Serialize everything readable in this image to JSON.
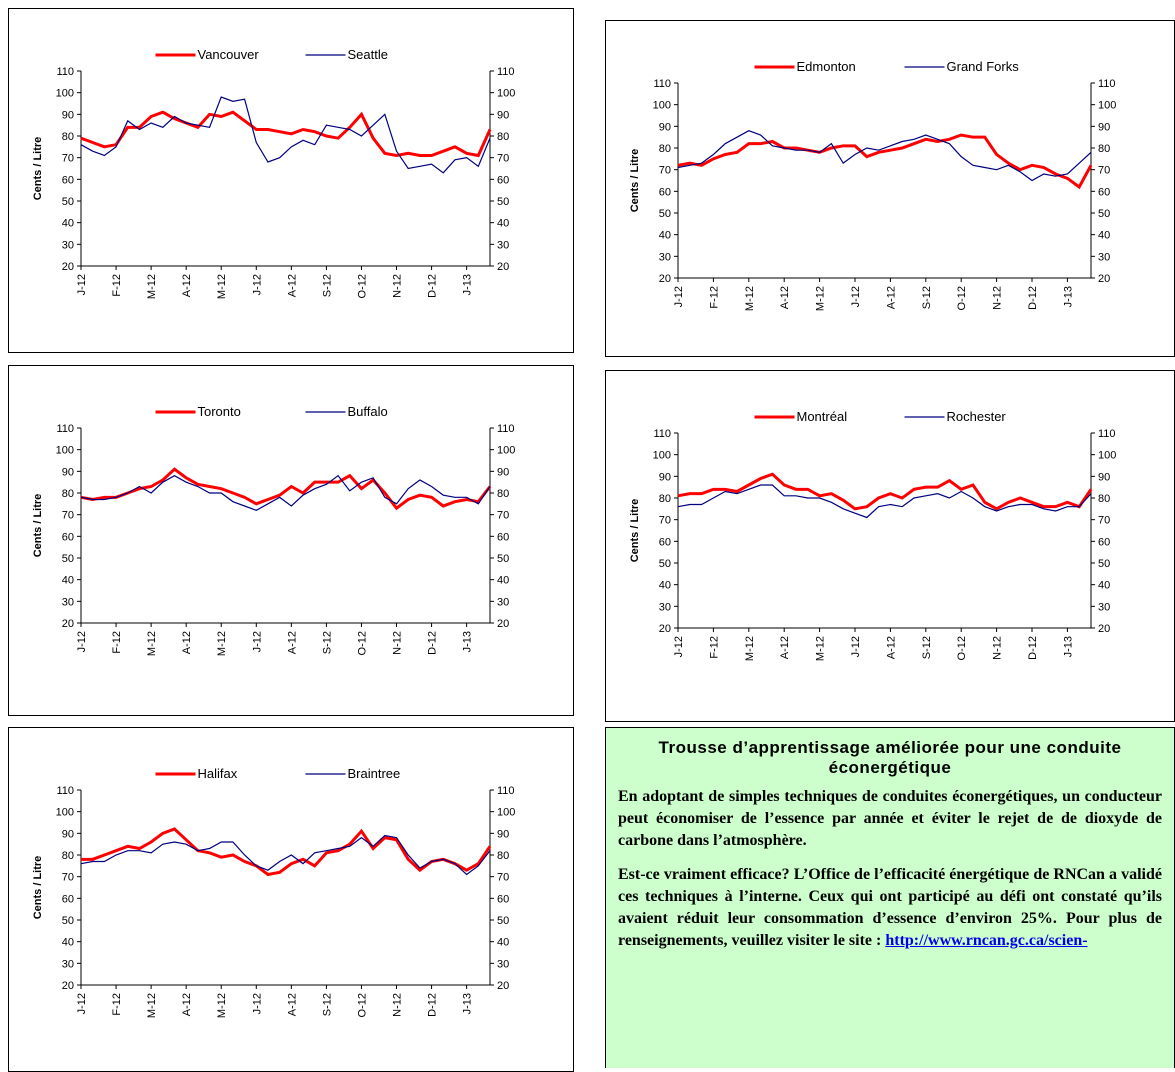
{
  "chart_data": [
    {
      "type": "line",
      "y_label": "Cents / Litre",
      "legend": "top",
      "ylim": [
        20,
        110
      ],
      "yticks": [
        20,
        30,
        40,
        50,
        60,
        70,
        80,
        90,
        100,
        110
      ],
      "y2lim": [
        20,
        110
      ],
      "y2ticks": [
        20,
        30,
        40,
        50,
        60,
        70,
        80,
        90,
        100,
        110
      ],
      "categories": [
        "J-12",
        null,
        null,
        "F-12",
        null,
        null,
        "M-12",
        null,
        null,
        "A-12",
        null,
        null,
        "M-12",
        null,
        null,
        "J-12",
        null,
        null,
        "A-12",
        null,
        null,
        "S-12",
        null,
        null,
        "O-12",
        null,
        null,
        "N-12",
        null,
        null,
        "D-12",
        null,
        null,
        "J-13",
        null,
        null
      ],
      "series": [
        {
          "name": "Vancouver",
          "color": "#ff0000",
          "values": [
            79,
            77,
            75,
            76,
            84,
            84,
            89,
            91,
            88,
            86,
            84,
            90,
            89,
            91,
            87,
            83,
            83,
            82,
            81,
            83,
            82,
            80,
            79,
            84,
            90,
            79,
            72,
            71,
            72,
            71,
            71,
            73,
            75,
            72,
            71,
            83
          ]
        },
        {
          "name": "Seattle",
          "color": "#000080",
          "values": [
            76,
            73,
            71,
            75,
            87,
            83,
            86,
            84,
            89,
            86,
            85,
            84,
            98,
            96,
            97,
            77,
            68,
            70,
            75,
            78,
            76,
            85,
            84,
            83,
            80,
            85,
            90,
            73,
            65,
            66,
            67,
            63,
            69,
            70,
            66,
            79
          ]
        }
      ]
    },
    {
      "type": "line",
      "y_label": "Cents / Litre",
      "legend": "top",
      "ylim": [
        20,
        110
      ],
      "yticks": [
        20,
        30,
        40,
        50,
        60,
        70,
        80,
        90,
        100,
        110
      ],
      "y2lim": [
        20,
        110
      ],
      "y2ticks": [
        20,
        30,
        40,
        50,
        60,
        70,
        80,
        90,
        100,
        110
      ],
      "categories": [
        "J-12",
        null,
        null,
        "F-12",
        null,
        null,
        "M-12",
        null,
        null,
        "A-12",
        null,
        null,
        "M-12",
        null,
        null,
        "J-12",
        null,
        null,
        "A-12",
        null,
        null,
        "S-12",
        null,
        null,
        "O-12",
        null,
        null,
        "N-12",
        null,
        null,
        "D-12",
        null,
        null,
        "J-13",
        null,
        null
      ],
      "series": [
        {
          "name": "Edmonton",
          "color": "#ff0000",
          "values": [
            72,
            73,
            72,
            75,
            77,
            78,
            82,
            82,
            83,
            80,
            80,
            79,
            78,
            80,
            81,
            81,
            76,
            78,
            79,
            80,
            82,
            84,
            83,
            84,
            86,
            85,
            85,
            77,
            73,
            70,
            72,
            71,
            68,
            66,
            62,
            72
          ]
        },
        {
          "name": "Grand Forks",
          "color": "#000080",
          "values": [
            71,
            72,
            73,
            77,
            82,
            85,
            88,
            86,
            81,
            80,
            79,
            79,
            78,
            82,
            73,
            77,
            80,
            79,
            81,
            83,
            84,
            86,
            84,
            82,
            76,
            72,
            71,
            70,
            72,
            69,
            65,
            68,
            67,
            68,
            73,
            78
          ]
        }
      ]
    },
    {
      "type": "line",
      "y_label": "Cents / Litre",
      "legend": "top",
      "ylim": [
        20,
        110
      ],
      "yticks": [
        20,
        30,
        40,
        50,
        60,
        70,
        80,
        90,
        100,
        110
      ],
      "y2lim": [
        20,
        110
      ],
      "y2ticks": [
        20,
        30,
        40,
        50,
        60,
        70,
        80,
        90,
        100,
        110
      ],
      "categories": [
        "J-12",
        null,
        null,
        "F-12",
        null,
        null,
        "M-12",
        null,
        null,
        "A-12",
        null,
        null,
        "M-12",
        null,
        null,
        "J-12",
        null,
        null,
        "A-12",
        null,
        null,
        "S-12",
        null,
        null,
        "O-12",
        null,
        null,
        "N-12",
        null,
        null,
        "D-12",
        null,
        null,
        "J-13",
        null,
        null
      ],
      "series": [
        {
          "name": "Toronto",
          "color": "#ff0000",
          "values": [
            78,
            77,
            78,
            78,
            80,
            82,
            83,
            86,
            91,
            87,
            84,
            83,
            82,
            80,
            78,
            75,
            77,
            79,
            83,
            80,
            85,
            85,
            85,
            88,
            82,
            86,
            80,
            73,
            77,
            79,
            78,
            74,
            76,
            77,
            76,
            83
          ]
        },
        {
          "name": "Buffalo",
          "color": "#000080",
          "values": [
            78,
            77,
            77,
            78,
            80,
            83,
            80,
            85,
            88,
            85,
            83,
            80,
            80,
            76,
            74,
            72,
            75,
            78,
            74,
            79,
            82,
            84,
            88,
            81,
            85,
            87,
            78,
            75,
            82,
            86,
            83,
            79,
            78,
            78,
            75,
            83
          ]
        }
      ]
    },
    {
      "type": "line",
      "y_label": "Cents / Litre",
      "legend": "top",
      "ylim": [
        20,
        110
      ],
      "yticks": [
        20,
        30,
        40,
        50,
        60,
        70,
        80,
        90,
        100,
        110
      ],
      "y2lim": [
        20,
        110
      ],
      "y2ticks": [
        20,
        30,
        40,
        50,
        60,
        70,
        80,
        90,
        100,
        110
      ],
      "categories": [
        "J-12",
        null,
        null,
        "F-12",
        null,
        null,
        "M-12",
        null,
        null,
        "A-12",
        null,
        null,
        "M-12",
        null,
        null,
        "J-12",
        null,
        null,
        "A-12",
        null,
        null,
        "S-12",
        null,
        null,
        "O-12",
        null,
        null,
        "N-12",
        null,
        null,
        "D-12",
        null,
        null,
        "J-13",
        null,
        null
      ],
      "series": [
        {
          "name": "Montréal",
          "color": "#ff0000",
          "values": [
            81,
            82,
            82,
            84,
            84,
            83,
            86,
            89,
            91,
            86,
            84,
            84,
            81,
            82,
            79,
            75,
            76,
            80,
            82,
            80,
            84,
            85,
            85,
            88,
            84,
            86,
            78,
            75,
            78,
            80,
            78,
            76,
            76,
            78,
            76,
            84
          ]
        },
        {
          "name": "Rochester",
          "color": "#000080",
          "values": [
            76,
            77,
            77,
            80,
            83,
            82,
            84,
            86,
            86,
            81,
            81,
            80,
            80,
            78,
            75,
            73,
            71,
            76,
            77,
            76,
            80,
            81,
            82,
            80,
            83,
            80,
            76,
            74,
            76,
            77,
            77,
            75,
            74,
            76,
            76,
            82
          ]
        }
      ]
    },
    {
      "type": "line",
      "y_label": "Cents / Litre",
      "legend": "top",
      "ylim": [
        20,
        110
      ],
      "yticks": [
        20,
        30,
        40,
        50,
        60,
        70,
        80,
        90,
        100,
        110
      ],
      "y2lim": [
        20,
        110
      ],
      "y2ticks": [
        20,
        30,
        40,
        50,
        60,
        70,
        80,
        90,
        100,
        110
      ],
      "categories": [
        "J-12",
        null,
        null,
        "F-12",
        null,
        null,
        "M-12",
        null,
        null,
        "A-12",
        null,
        null,
        "M-12",
        null,
        null,
        "J-12",
        null,
        null,
        "A-12",
        null,
        null,
        "S-12",
        null,
        null,
        "O-12",
        null,
        null,
        "N-12",
        null,
        null,
        "D-12",
        null,
        null,
        "J-13",
        null,
        null
      ],
      "series": [
        {
          "name": "Halifax",
          "color": "#ff0000",
          "values": [
            78,
            78,
            80,
            82,
            84,
            83,
            86,
            90,
            92,
            87,
            82,
            81,
            79,
            80,
            77,
            75,
            71,
            72,
            76,
            78,
            75,
            81,
            82,
            85,
            91,
            83,
            88,
            87,
            78,
            73,
            77,
            78,
            76,
            73,
            76,
            84
          ]
        },
        {
          "name": "Braintree",
          "color": "#000080",
          "values": [
            76,
            77,
            77,
            80,
            82,
            82,
            81,
            85,
            86,
            85,
            82,
            83,
            86,
            86,
            80,
            75,
            73,
            77,
            80,
            76,
            81,
            82,
            83,
            84,
            88,
            84,
            89,
            88,
            80,
            74,
            77,
            78,
            76,
            71,
            75,
            82
          ]
        }
      ]
    }
  ],
  "textbox": {
    "title": "Trousse d’apprentissage améliorée pour une conduite éconergétique",
    "paragraph1": "En adoptant de simples techniques de conduites éconergétiques, un conducteur peut économiser de l’essence par année et éviter le rejet de de dioxyde de carbone dans l’atmosphère.",
    "paragraph2": "Est-ce vraiment efficace? L’Office de l’efficacité énergétique de RNCan a validé ces techniques à l’interne. Ceux qui ont participé au défi ont constaté qu’ils avaient réduit leur consommation d’essence d’environ 25%. Pour plus de renseignements, veuillez visiter le site :",
    "link": "http://www.rncan.gc.ca/scien-"
  }
}
